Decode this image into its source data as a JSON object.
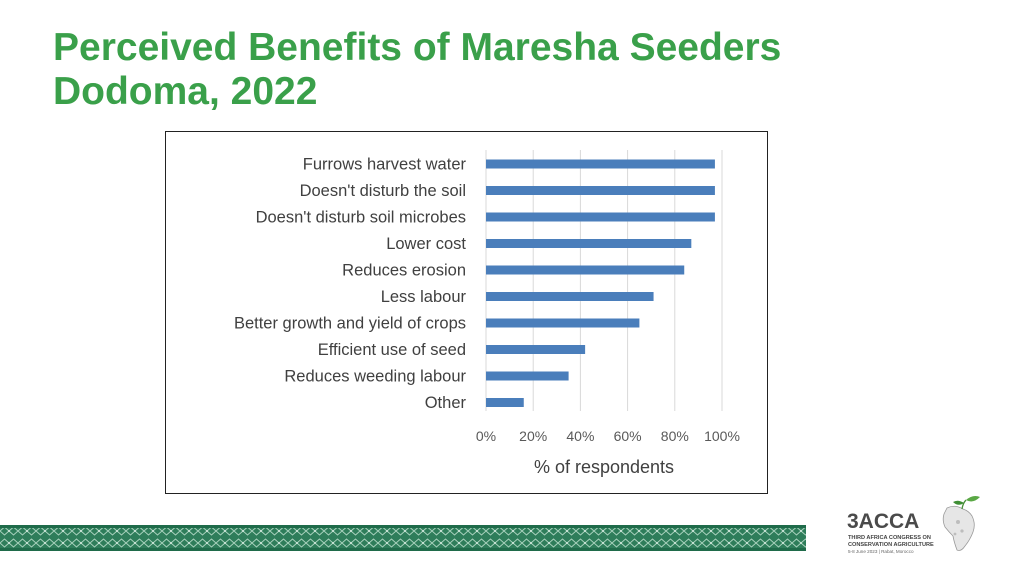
{
  "slide": {
    "title_line1": "Perceived Benefits of Maresha Seeders",
    "title_line2": "Dodoma, 2022"
  },
  "chart_data": {
    "type": "bar",
    "orientation": "horizontal",
    "categories": [
      "Furrows harvest water",
      "Doesn't disturb the soil",
      "Doesn't disturb soil microbes",
      "Lower cost",
      "Reduces erosion",
      "Less labour",
      "Better growth and yield of crops",
      "Efficient use of seed",
      "Reduces weeding labour",
      "Other"
    ],
    "values": [
      97,
      97,
      97,
      87,
      84,
      71,
      65,
      42,
      35,
      16
    ],
    "xlabel": "% of respondents",
    "xlim": [
      0,
      100
    ],
    "xticks": [
      "0%",
      "20%",
      "40%",
      "60%",
      "80%",
      "100%"
    ],
    "grid": "vertical",
    "bar_color": "#4a7ebb",
    "grid_color": "#d9d9d9"
  },
  "logo": {
    "name": "3ACCA",
    "line1": "THIRD AFRICA CONGRESS ON",
    "line2": "CONSERVATION AGRICULTURE",
    "line3": "5-8 June 2023 | Rabat, Morocco"
  },
  "colors": {
    "title": "#3aa04a",
    "band_dark": "#1f6b4a",
    "band_light": "#6fae8e"
  }
}
